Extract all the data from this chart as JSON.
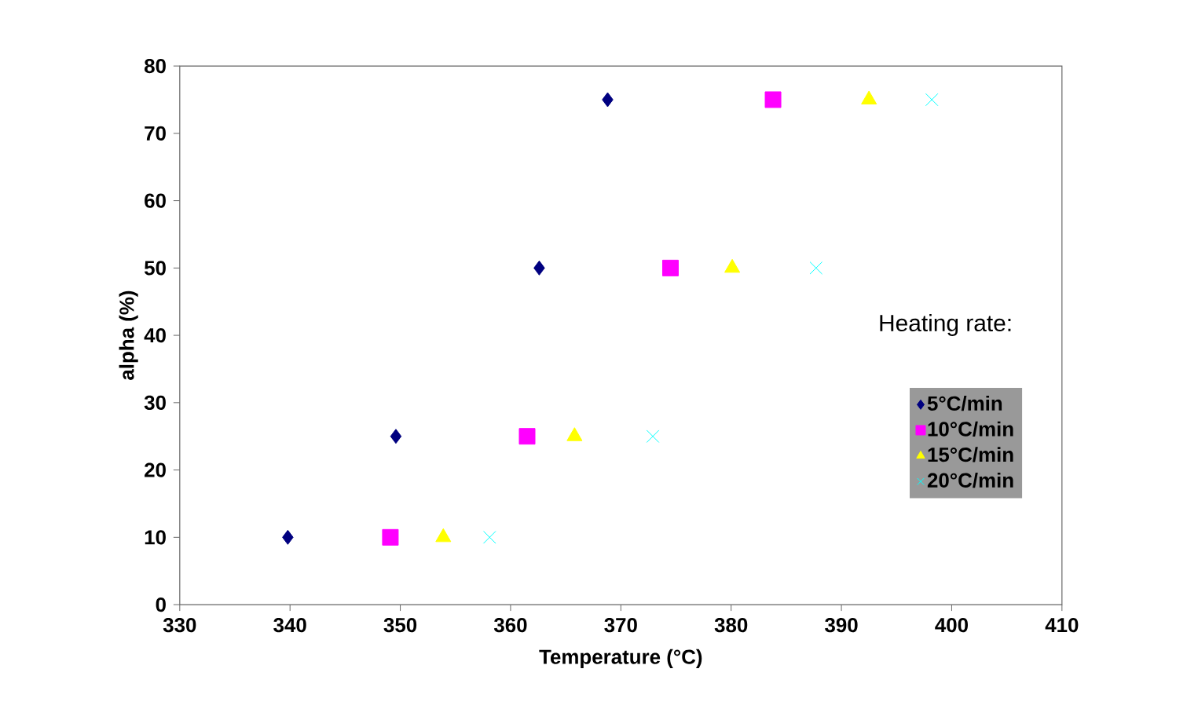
{
  "chart_data": {
    "type": "scatter",
    "xlabel": "Temperature (°C)",
    "ylabel": "alpha (%)",
    "legend_title": "Heating rate:",
    "xlim": [
      330,
      410
    ],
    "xticks": [
      330,
      340,
      350,
      360,
      370,
      380,
      390,
      400,
      410
    ],
    "ylim": [
      0,
      80
    ],
    "yticks": [
      0,
      10,
      20,
      30,
      40,
      50,
      60,
      70,
      80
    ],
    "grid": false,
    "legend": "right",
    "series": [
      {
        "name": "5°C/min",
        "color": "#000080",
        "marker": "diamond",
        "x": [
          339.8,
          349.6,
          362.6,
          368.8
        ],
        "values": [
          10,
          25,
          50,
          75
        ]
      },
      {
        "name": "10°C/min",
        "color": "#ff00ff",
        "marker": "square",
        "x": [
          349.1,
          361.5,
          374.5,
          383.8
        ],
        "values": [
          10,
          25,
          50,
          75
        ]
      },
      {
        "name": "15°C/min",
        "color": "#ffff00",
        "marker": "triangle",
        "x": [
          353.9,
          365.8,
          380.1,
          392.5
        ],
        "values": [
          10,
          25,
          50,
          75
        ]
      },
      {
        "name": "20°C/min",
        "color": "#00ffff",
        "marker": "cross",
        "x": [
          358.1,
          372.9,
          387.7,
          398.2
        ],
        "values": [
          10,
          25,
          50,
          75
        ]
      }
    ]
  }
}
